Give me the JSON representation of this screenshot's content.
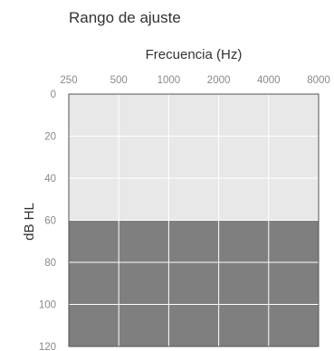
{
  "chart_data": {
    "type": "area",
    "title": "Rango de ajuste",
    "xlabel": "Frecuencia (Hz)",
    "ylabel": "dB HL",
    "x_ticks": [
      "250",
      "500",
      "1000",
      "2000",
      "4000",
      "8000"
    ],
    "y_ticks": [
      "0",
      "20",
      "40",
      "60",
      "80",
      "100",
      "120"
    ],
    "ylim": [
      0,
      120
    ],
    "y_inverted": true,
    "grid": true,
    "series": [
      {
        "x": [
          "250",
          "8000"
        ],
        "y_from": [
          60,
          60
        ],
        "y_to": [
          120,
          120
        ],
        "color": "#7f7f7f"
      }
    ],
    "background_color": "#e8e8e9",
    "grid_color": "#ffffff"
  }
}
